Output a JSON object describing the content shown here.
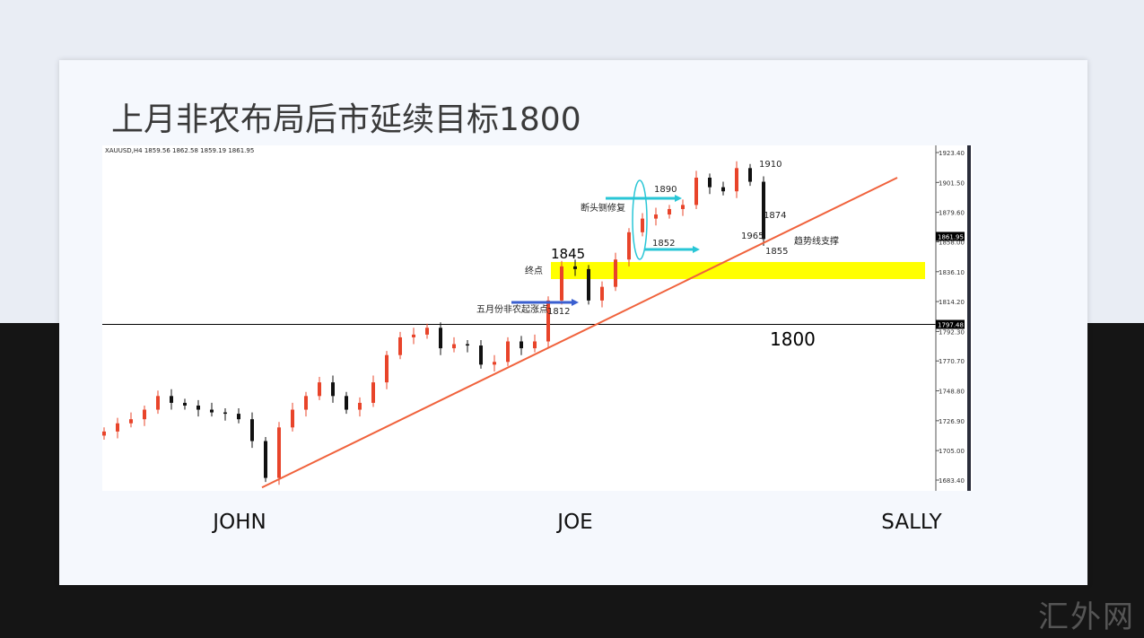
{
  "title": "上月非农布局后市延续目标1800",
  "watermark": "汇外网",
  "chart_data": {
    "type": "candlestick",
    "ticker": "XAUUSD,H4  1859.56 1862.58 1859.19 1861.95",
    "closes": [
      1719,
      1725,
      1728,
      1735,
      1745,
      1740,
      1738,
      1735,
      1733,
      1732,
      1728,
      1712,
      1685,
      1722,
      1735,
      1745,
      1755,
      1745,
      1735,
      1740,
      1755,
      1775,
      1788,
      1790,
      1795,
      1780,
      1783,
      1782,
      1768,
      1770,
      1785,
      1780,
      1785,
      1815,
      1840,
      1838,
      1815,
      1825,
      1845,
      1865,
      1875,
      1878,
      1882,
      1885,
      1905,
      1898,
      1895,
      1912,
      1902,
      1860
    ],
    "ylim": [
      1683.4,
      1923.4
    ],
    "y_ticks": [
      "1923.40",
      "1901.50",
      "1879.60",
      "1858.00",
      "1836.10",
      "1814.20",
      "1792.30",
      "1770.70",
      "1748.80",
      "1726.90",
      "1705.00",
      "1683.40"
    ],
    "current_price_label": "1861.95",
    "horizontal_line": {
      "price": 1797.48,
      "label": "1797.48",
      "color": "#000000"
    },
    "support_zone": {
      "from": 1830.7,
      "to": 1843.2,
      "color": "#ffff00"
    },
    "trendline": {
      "start": {
        "index": 12,
        "price": 1678
      },
      "end": {
        "index": 60,
        "price": 1905
      },
      "color": "#f0623c"
    },
    "x_labels": [
      "JOHN",
      "JOE",
      "SALLY"
    ],
    "annotations": {
      "a1845": "1845",
      "end_point": "终点",
      "may_nfp": "五月份非农起涨点",
      "a1812": "1812",
      "repair": "断头铡修复",
      "a1890": "1890",
      "a1852": "1852",
      "a1910": "1910",
      "a1874": "1874",
      "a1965": "1965",
      "a1855": "1855",
      "trend_support": "趋势线支撑",
      "a1800": "1800"
    },
    "colors": {
      "up": "#e8442a",
      "down": "#111111",
      "arrow_blue": "#3a5fd0",
      "arrow_cyan": "#29c6d6"
    }
  }
}
